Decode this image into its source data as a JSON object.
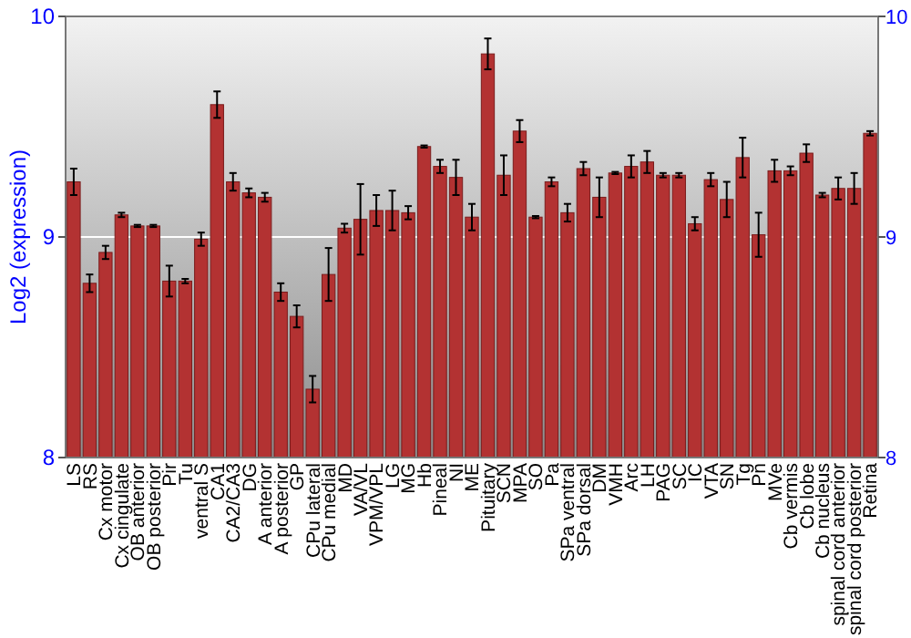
{
  "chart_data": {
    "type": "bar",
    "ylabel": "Log2 (expression)",
    "categories": [
      "LS",
      "RS",
      "Cx motor",
      "Cx cingulate",
      "OB anterior",
      "OB posterior",
      "Pir",
      "Tu",
      "ventral S",
      "CA1",
      "CA2/CA3",
      "DG",
      "A anterior",
      "A posterior",
      "GP",
      "CPu lateral",
      "CPu medial",
      "MD",
      "VA/VL",
      "VPM/VPL",
      "LG",
      "MG",
      "Hb",
      "Pineal",
      "NI",
      "ME",
      "Pituitary",
      "SCN",
      "MPA",
      "SO",
      "Pa",
      "SPa ventral",
      "SPa dorsal",
      "DM",
      "VMH",
      "Arc",
      "LH",
      "PAG",
      "SC",
      "IC",
      "VTA",
      "SN",
      "Tg",
      "Pn",
      "MVe",
      "Cb vermis",
      "Cb lobe",
      "Cb nucleus",
      "spinal cord anterior",
      "spinal cord posterior",
      "Retina"
    ],
    "values": [
      9.25,
      8.79,
      8.93,
      9.1,
      9.05,
      9.05,
      8.8,
      8.8,
      8.99,
      9.6,
      9.25,
      9.2,
      9.18,
      8.75,
      8.64,
      8.31,
      8.83,
      9.04,
      9.08,
      9.12,
      9.12,
      9.11,
      9.41,
      9.32,
      9.27,
      9.09,
      9.83,
      9.28,
      9.48,
      9.09,
      9.25,
      9.11,
      9.31,
      9.18,
      9.29,
      9.32,
      9.34,
      9.28,
      9.28,
      9.06,
      9.26,
      9.17,
      9.36,
      9.01,
      9.3,
      9.3,
      9.38,
      9.19,
      9.22,
      9.22,
      9.47
    ],
    "errors": [
      0.06,
      0.04,
      0.03,
      0.01,
      0.005,
      0.005,
      0.07,
      0.01,
      0.03,
      0.06,
      0.04,
      0.02,
      0.02,
      0.04,
      0.05,
      0.06,
      0.12,
      0.02,
      0.16,
      0.07,
      0.09,
      0.03,
      0.005,
      0.03,
      0.08,
      0.06,
      0.07,
      0.09,
      0.05,
      0.005,
      0.02,
      0.04,
      0.03,
      0.09,
      0.005,
      0.05,
      0.05,
      0.01,
      0.01,
      0.03,
      0.03,
      0.08,
      0.09,
      0.1,
      0.05,
      0.02,
      0.04,
      0.01,
      0.05,
      0.07,
      0.01
    ],
    "color": "#b33232",
    "ylim": [
      8,
      10
    ],
    "yticks": [
      8,
      9,
      10
    ],
    "y2lim": [
      8,
      10
    ],
    "y2ticks": [
      8,
      9,
      10
    ],
    "grid": "y"
  }
}
